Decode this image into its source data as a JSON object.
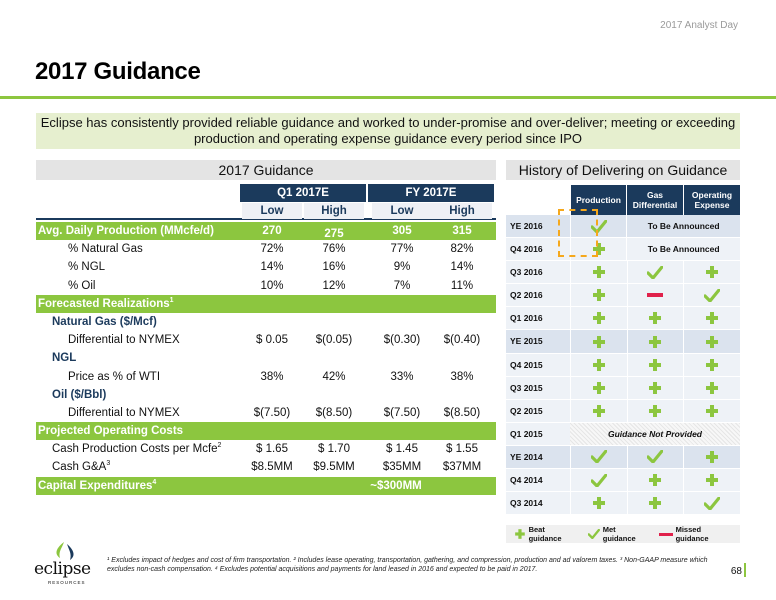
{
  "event_label": "2017 Analyst Day",
  "title": "2017 Guidance",
  "banner": "Eclipse has consistently provided reliable guidance and worked to under-promise and over-deliver; meeting or exceeding production and operating expense guidance every period since IPO",
  "guidance": {
    "header": "2017 Guidance",
    "period_q1": "Q1 2017E",
    "period_fy": "FY 2017E",
    "low": "Low",
    "high": "High",
    "production": {
      "label": "Avg. Daily Production (MMcfe/d)",
      "values": [
        "270",
        "275",
        "305",
        "315"
      ]
    },
    "natural_gas_pct": {
      "label": "% Natural Gas",
      "values": [
        "72%",
        "76%",
        "77%",
        "82%"
      ]
    },
    "ngl_pct": {
      "label": "% NGL",
      "values": [
        "14%",
        "16%",
        "9%",
        "14%"
      ]
    },
    "oil_pct": {
      "label": "% Oil",
      "values": [
        "10%",
        "12%",
        "7%",
        "11%"
      ]
    },
    "realizations": {
      "label": "Forecasted Realizations",
      "sup": "1"
    },
    "gas_head": "Natural Gas ($/Mcf)",
    "gas_diff": {
      "label": "Differential to NYMEX",
      "values": [
        "$ 0.05",
        "$(0.05)",
        "$(0.30)",
        "$(0.40)"
      ]
    },
    "ngl_head": "NGL",
    "ngl_price": {
      "label": "Price as % of WTI",
      "values": [
        "38%",
        "42%",
        "33%",
        "38%"
      ]
    },
    "oil_head": "Oil ($/Bbl)",
    "oil_diff": {
      "label": "Differential to NYMEX",
      "values": [
        "$(7.50)",
        "$(8.50)",
        "$(7.50)",
        "$(8.50)"
      ]
    },
    "opcosts": {
      "label": "Projected Operating Costs"
    },
    "cash_prod": {
      "label": "Cash Production Costs per Mcfe",
      "sup": "2",
      "values": [
        "$ 1.65",
        "$ 1.70",
        "$ 1.45",
        "$ 1.55"
      ]
    },
    "cash_ga": {
      "label": "Cash G&A",
      "sup": "3",
      "values": [
        "$8.5MM",
        "$9.5MM",
        "$35MM",
        "$37MM"
      ]
    },
    "capex": {
      "label": "Capital Expenditures",
      "sup": "4",
      "value": "~$300MM"
    }
  },
  "history": {
    "header": "History of Delivering on Guidance",
    "col_production": "Production",
    "col_gas_line1": "Gas",
    "col_gas_line2": "Differential",
    "col_opex_line1": "Operating",
    "col_opex_line2": "Expense",
    "to_be_announced": "To Be Announced",
    "not_provided": "Guidance Not Provided",
    "rows": [
      {
        "q": "YE 2016",
        "p": "met",
        "g": "tba",
        "o": "tba"
      },
      {
        "q": "Q4 2016",
        "p": "beat",
        "g": "tba",
        "o": "tba"
      },
      {
        "q": "Q3 2016",
        "p": "beat",
        "g": "met",
        "o": "beat"
      },
      {
        "q": "Q2 2016",
        "p": "beat",
        "g": "missed",
        "o": "met"
      },
      {
        "q": "Q1 2016",
        "p": "beat",
        "g": "beat",
        "o": "beat"
      },
      {
        "q": "YE 2015",
        "p": "beat",
        "g": "beat",
        "o": "beat"
      },
      {
        "q": "Q4 2015",
        "p": "beat",
        "g": "beat",
        "o": "beat"
      },
      {
        "q": "Q3 2015",
        "p": "beat",
        "g": "beat",
        "o": "beat"
      },
      {
        "q": "Q2 2015",
        "p": "beat",
        "g": "beat",
        "o": "beat"
      },
      {
        "q": "Q1 2015",
        "p": "np",
        "g": "np",
        "o": "np"
      },
      {
        "q": "YE 2014",
        "p": "met",
        "g": "met",
        "o": "beat"
      },
      {
        "q": "Q4 2014",
        "p": "met",
        "g": "beat",
        "o": "beat"
      },
      {
        "q": "Q3 2014",
        "p": "beat",
        "g": "beat",
        "o": "met"
      }
    ]
  },
  "legend": {
    "beat": "Beat guidance",
    "met": "Met guidance",
    "missed": "Missed guidance"
  },
  "footnote": "¹ Excludes impact of hedges and cost of firm transportation. ² Includes lease operating, transportation, gathering, and compression, production and ad valorem taxes. ³ Non-GAAP measure which excludes non-cash compensation. ⁴ Excludes potential acquisitions and payments for land leased in 2016 and expected to be paid in 2017.",
  "page_number": "68",
  "logo": {
    "word": "eclipse",
    "sub": "RESOURCES"
  },
  "colors": {
    "brand_green": "#8cc63f",
    "navy": "#1b3a5c",
    "missed_red": "#e0214b",
    "highlight_orange": "#f5a81c"
  }
}
